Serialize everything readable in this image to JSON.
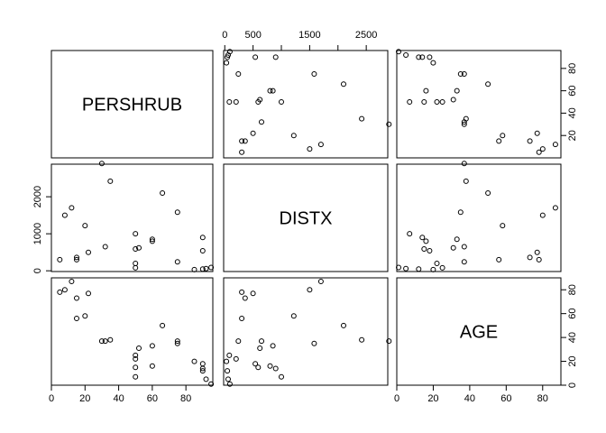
{
  "chart_data": {
    "type": "scatter",
    "variables": [
      "PERSHRUB",
      "DISTX",
      "AGE"
    ],
    "axes": {
      "PERSHRUB": {
        "range": [
          0,
          96
        ],
        "ticks": [
          0,
          20,
          40,
          60,
          80
        ]
      },
      "DISTX": {
        "range": [
          -20,
          2880
        ],
        "ticks": [
          0,
          1000,
          2000
        ],
        "top_ticks": [
          0,
          500,
          1500,
          2500
        ]
      },
      "AGE": {
        "range": [
          0,
          90
        ],
        "ticks": [
          0,
          20,
          40,
          60,
          80
        ]
      }
    },
    "observations": [
      {
        "PERSHRUB": 90,
        "DISTX": 45,
        "AGE": 12
      },
      {
        "PERSHRUB": 92,
        "DISTX": 60,
        "AGE": 5
      },
      {
        "PERSHRUB": 95,
        "DISTX": 90,
        "AGE": 1
      },
      {
        "PERSHRUB": 90,
        "DISTX": 540,
        "AGE": 18
      },
      {
        "PERSHRUB": 90,
        "DISTX": 900,
        "AGE": 14
      },
      {
        "PERSHRUB": 85,
        "DISTX": 30,
        "AGE": 20
      },
      {
        "PERSHRUB": 75,
        "DISTX": 240,
        "AGE": 37
      },
      {
        "PERSHRUB": 75,
        "DISTX": 1580,
        "AGE": 35
      },
      {
        "PERSHRUB": 66,
        "DISTX": 2100,
        "AGE": 50
      },
      {
        "PERSHRUB": 60,
        "DISTX": 800,
        "AGE": 16
      },
      {
        "PERSHRUB": 60,
        "DISTX": 850,
        "AGE": 33
      },
      {
        "PERSHRUB": 52,
        "DISTX": 620,
        "AGE": 31
      },
      {
        "PERSHRUB": 50,
        "DISTX": 80,
        "AGE": 25
      },
      {
        "PERSHRUB": 50,
        "DISTX": 200,
        "AGE": 22
      },
      {
        "PERSHRUB": 50,
        "DISTX": 590,
        "AGE": 15
      },
      {
        "PERSHRUB": 50,
        "DISTX": 1000,
        "AGE": 7
      },
      {
        "PERSHRUB": 35,
        "DISTX": 2420,
        "AGE": 38
      },
      {
        "PERSHRUB": 32,
        "DISTX": 650,
        "AGE": 37
      },
      {
        "PERSHRUB": 30,
        "DISTX": 2900,
        "AGE": 37
      },
      {
        "PERSHRUB": 22,
        "DISTX": 500,
        "AGE": 77
      },
      {
        "PERSHRUB": 20,
        "DISTX": 1220,
        "AGE": 58
      },
      {
        "PERSHRUB": 15,
        "DISTX": 300,
        "AGE": 56
      },
      {
        "PERSHRUB": 15,
        "DISTX": 360,
        "AGE": 73
      },
      {
        "PERSHRUB": 12,
        "DISTX": 1700,
        "AGE": 87
      },
      {
        "PERSHRUB": 8,
        "DISTX": 1500,
        "AGE": 80
      },
      {
        "PERSHRUB": 5,
        "DISTX": 300,
        "AGE": 78
      }
    ]
  }
}
